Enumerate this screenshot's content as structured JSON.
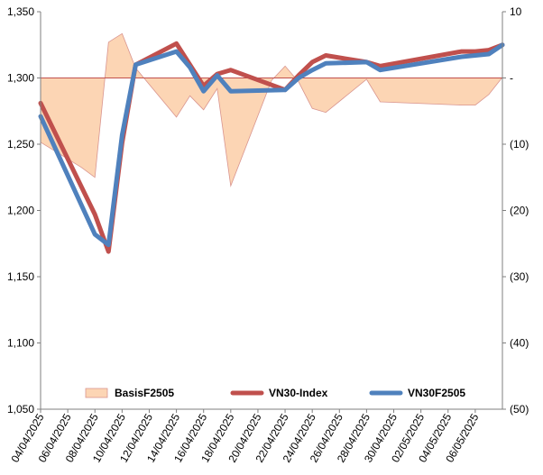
{
  "chart_data": {
    "type": "line",
    "title": "",
    "xlabel": "",
    "ylabel": "",
    "x_ticks": [
      "04/04/2025",
      "06/04/2025",
      "08/04/2025",
      "10/04/2025",
      "12/04/2025",
      "14/04/2025",
      "16/04/2025",
      "18/04/2025",
      "20/04/2025",
      "22/04/2025",
      "24/04/2025",
      "26/04/2025",
      "28/04/2025",
      "30/04/2025",
      "02/05/2025",
      "04/05/2025",
      "06/05/2025"
    ],
    "x_range": [
      "2025-04-04",
      "2025-05-08"
    ],
    "y_left": {
      "range": [
        1050,
        1350
      ],
      "ticks": [
        1050,
        1100,
        1150,
        1200,
        1250,
        1300,
        1350
      ],
      "tick_labels": [
        "1,050",
        "1,100",
        "1,150",
        "1,200",
        "1,250",
        "1,300",
        "1,350"
      ]
    },
    "y_right": {
      "range": [
        -50,
        10
      ],
      "ticks": [
        10,
        0,
        -10,
        -20,
        -30,
        -40,
        -50
      ],
      "tick_labels": [
        "10",
        "-",
        "(10)",
        "(20)",
        "(30)",
        "(40)",
        "(50)"
      ]
    },
    "legend_position": "bottom",
    "series": [
      {
        "name": "BasisF2505",
        "kind": "area",
        "axis": "right",
        "color": "#fcd5b4",
        "edge_color": "#d9958f",
        "x": [
          "2025-04-04",
          "2025-04-07",
          "2025-04-08",
          "2025-04-09",
          "2025-04-10",
          "2025-04-11",
          "2025-04-14",
          "2025-04-15",
          "2025-04-16",
          "2025-04-17",
          "2025-04-18",
          "2025-04-21",
          "2025-04-22",
          "2025-04-23",
          "2025-04-24",
          "2025-04-25",
          "2025-04-28",
          "2025-04-29",
          "2025-05-05",
          "2025-05-06",
          "2025-05-07",
          "2025-05-08"
        ],
        "values": [
          -9.7,
          -13.5,
          -15.0,
          5.4,
          6.7,
          1.5,
          -5.9,
          -2.7,
          -4.8,
          -1.6,
          -16.3,
          -0.4,
          1.8,
          -0.6,
          -4.6,
          -5.2,
          -0.2,
          -3.6,
          -4.1,
          -4.1,
          -2.5,
          0.1
        ]
      },
      {
        "name": "VN30-Index",
        "kind": "line",
        "axis": "left",
        "color": "#c0504d",
        "x": [
          "2025-04-04",
          "2025-04-08",
          "2025-04-09",
          "2025-04-10",
          "2025-04-11",
          "2025-04-14",
          "2025-04-15",
          "2025-04-16",
          "2025-04-17",
          "2025-04-18",
          "2025-04-22",
          "2025-04-23",
          "2025-04-24",
          "2025-04-25",
          "2025-04-28",
          "2025-04-29",
          "2025-05-05",
          "2025-05-06",
          "2025-05-07",
          "2025-05-08"
        ],
        "values": [
          1281,
          1197,
          1169,
          1251,
          1310,
          1326,
          1310,
          1294,
          1303,
          1306,
          1291,
          1302,
          1312,
          1317,
          1312,
          1309,
          1320,
          1320,
          1321,
          1325
        ]
      },
      {
        "name": "VN30F2505",
        "kind": "line",
        "axis": "left",
        "color": "#4f81bd",
        "x": [
          "2025-04-04",
          "2025-04-08",
          "2025-04-09",
          "2025-04-10",
          "2025-04-11",
          "2025-04-14",
          "2025-04-15",
          "2025-04-16",
          "2025-04-17",
          "2025-04-18",
          "2025-04-22",
          "2025-04-23",
          "2025-04-24",
          "2025-04-25",
          "2025-04-28",
          "2025-04-29",
          "2025-05-05",
          "2025-05-06",
          "2025-05-07",
          "2025-05-08"
        ],
        "values": [
          1271,
          1182,
          1174,
          1257,
          1310,
          1320,
          1308,
          1290,
          1302,
          1290,
          1291,
          1300,
          1306,
          1311,
          1312,
          1306,
          1316,
          1317,
          1318,
          1325
        ]
      }
    ]
  }
}
